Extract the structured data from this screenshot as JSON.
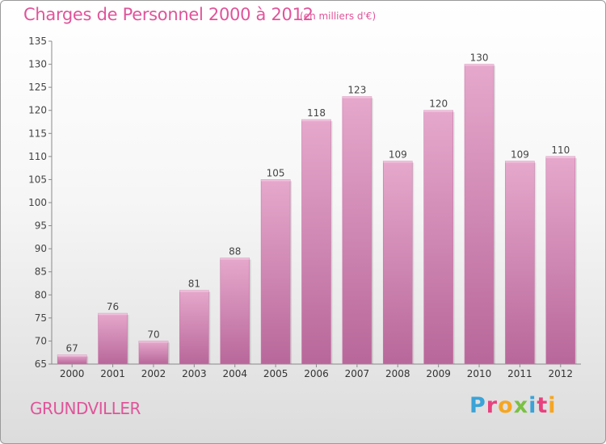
{
  "header": {
    "title": "Charges de Personnel 2000 à 2012",
    "units": "(en milliers d'€)"
  },
  "footer": {
    "place": "GRUNDVILLER",
    "logo_letters": [
      "P",
      "r",
      "o",
      "x",
      "i",
      "t",
      "i"
    ],
    "logo_colors": [
      "#3aa3d8",
      "#e8417e",
      "#f5a623",
      "#7ac143",
      "#3aa3d8",
      "#e8417e",
      "#f5a623"
    ]
  },
  "chart_data": {
    "type": "bar",
    "title": "Charges de Personnel 2000 à 2012",
    "categories": [
      "2000",
      "2001",
      "2002",
      "2003",
      "2004",
      "2005",
      "2006",
      "2007",
      "2008",
      "2009",
      "2010",
      "2011",
      "2012"
    ],
    "values": [
      67,
      76,
      70,
      81,
      88,
      105,
      118,
      123,
      109,
      120,
      130,
      109,
      110
    ],
    "ylim": [
      65,
      135
    ],
    "yticks": [
      65,
      70,
      75,
      80,
      85,
      90,
      95,
      100,
      105,
      110,
      115,
      120,
      125,
      130,
      135
    ],
    "xlabel": "",
    "ylabel": "",
    "grid": false,
    "bar_color": "#d283b3",
    "bar_color_light": "#e6a8cc",
    "bar_color_dark": "#b8679a"
  }
}
